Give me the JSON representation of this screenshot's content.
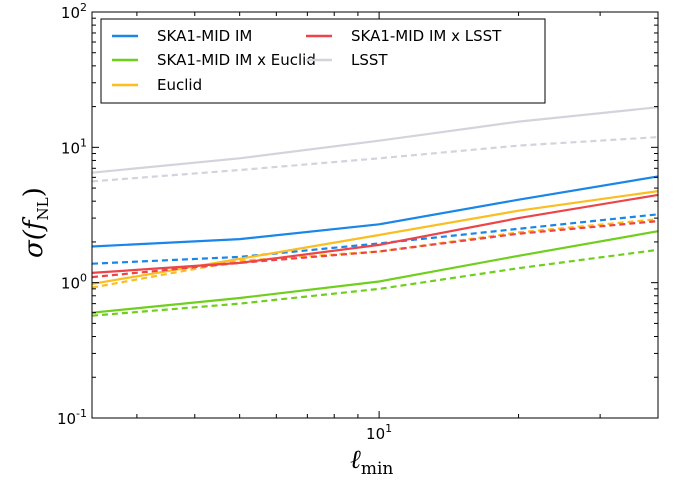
{
  "chart_data": {
    "type": "line",
    "xscale": "log",
    "yscale": "log",
    "xlim": [
      2.4,
      40
    ],
    "ylim": [
      0.1,
      100
    ],
    "grid": false,
    "legend_position": "top-left",
    "xlabel": {
      "main": "ℓ",
      "sub": "min"
    },
    "ylabel": {
      "main": "σ(f",
      "sub": "NL",
      "close": ")"
    },
    "x_ticks": [
      {
        "value": 10,
        "base": "10",
        "exp": "1"
      }
    ],
    "y_ticks": [
      {
        "value": 0.1,
        "base": "10",
        "exp": "-1"
      },
      {
        "value": 1,
        "base": "10",
        "exp": "0"
      },
      {
        "value": 10,
        "base": "10",
        "exp": "1"
      },
      {
        "value": 100,
        "base": "10",
        "exp": "2"
      }
    ],
    "x": [
      2.4,
      5,
      10,
      20,
      40
    ],
    "series": [
      {
        "name": "SKA1-MID IM",
        "color": "#1a86e8",
        "solid": [
          1.85,
          2.1,
          2.7,
          4.1,
          6.1
        ],
        "dashed": [
          1.38,
          1.55,
          1.95,
          2.5,
          3.2
        ]
      },
      {
        "name": "Euclid",
        "color": "#fbbd1f",
        "solid": [
          0.98,
          1.5,
          2.25,
          3.4,
          4.75
        ],
        "dashed": [
          0.92,
          1.45,
          1.7,
          2.35,
          2.95
        ]
      },
      {
        "name": "LSST",
        "color": "#d3d3dd",
        "solid": [
          6.5,
          8.3,
          11.2,
          15.5,
          19.8
        ],
        "dashed": [
          5.6,
          6.8,
          8.3,
          10.3,
          11.9
        ]
      },
      {
        "name": "SKA1-MID IM x Euclid",
        "color": "#6fcf1c",
        "solid": [
          0.6,
          0.77,
          1.02,
          1.58,
          2.4
        ],
        "dashed": [
          0.57,
          0.7,
          0.9,
          1.28,
          1.75
        ]
      },
      {
        "name": "SKA1-MID IM x LSST",
        "color": "#ec4449",
        "solid": [
          1.18,
          1.4,
          1.9,
          3.0,
          4.45
        ],
        "dashed": [
          1.1,
          1.4,
          1.7,
          2.3,
          2.85
        ]
      }
    ],
    "legend_order": [
      0,
      3,
      1,
      4,
      2
    ]
  }
}
